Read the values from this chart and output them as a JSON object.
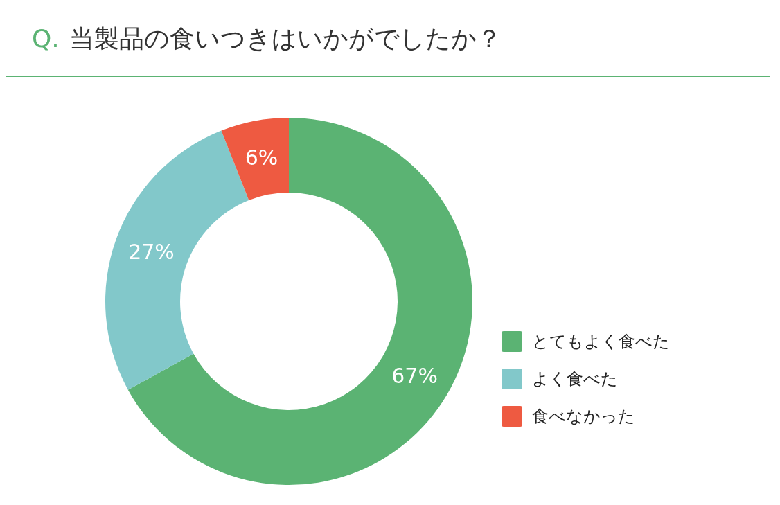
{
  "chart_data": {
    "type": "donut",
    "title": "Q. 当製品の食いつきはいかがでしたか？",
    "categories": [
      "とてもよく食べた",
      "よく食べた",
      "食べなかった"
    ],
    "values": [
      67,
      27,
      6
    ],
    "colors": [
      "#5bb373",
      "#82c8ca",
      "#ee5a41"
    ],
    "value_labels": [
      "67%",
      "27%",
      "6%"
    ],
    "legend": "right"
  }
}
